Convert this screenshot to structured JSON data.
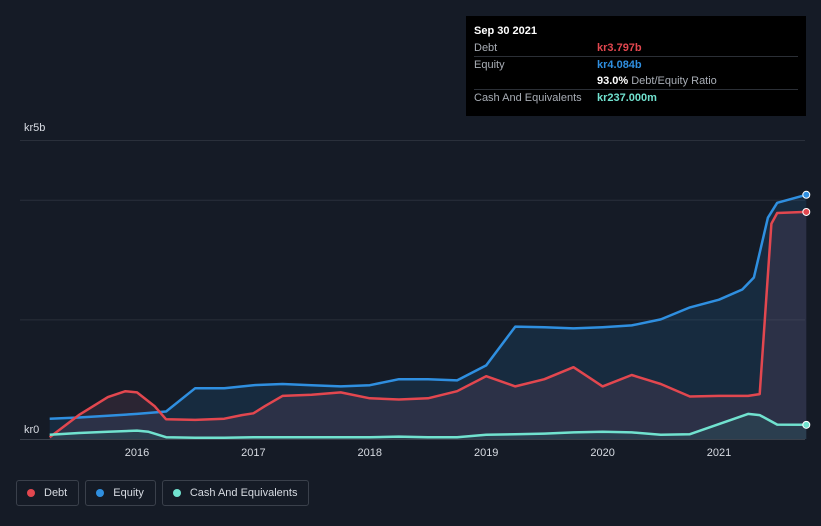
{
  "tooltip": {
    "date": "Sep 30 2021",
    "rows": [
      {
        "label": "Debt",
        "value": "kr3.797b",
        "color": "#e2474f"
      },
      {
        "label": "Equity",
        "value": "kr4.084b",
        "color": "#2f8fe0"
      },
      {
        "label": "",
        "value": "93.0%",
        "sub": "Debt/Equity Ratio",
        "color": "#ffffff"
      },
      {
        "label": "Cash And Equivalents",
        "value": "kr237.000m",
        "color": "#71e2cf"
      }
    ]
  },
  "legend": [
    {
      "label": "Debt",
      "color": "#e2474f"
    },
    {
      "label": "Equity",
      "color": "#2f8fe0"
    },
    {
      "label": "Cash And Equivalents",
      "color": "#71e2cf"
    }
  ],
  "chart_data": {
    "type": "area",
    "ylabel_top": "kr5b",
    "ylabel_bottom": "kr0",
    "ylim": [
      0,
      5
    ],
    "xlim": [
      2015.25,
      2021.75
    ],
    "x_ticks": [
      "2016",
      "2017",
      "2018",
      "2019",
      "2020",
      "2021"
    ],
    "grid": true,
    "legend_position": "bottom-left",
    "series": [
      {
        "name": "Debt",
        "color": "#e2474f",
        "x": [
          2015.25,
          2015.5,
          2015.75,
          2015.9,
          2016.0,
          2016.15,
          2016.25,
          2016.5,
          2016.75,
          2016.9,
          2017.0,
          2017.1,
          2017.25,
          2017.5,
          2017.75,
          2018.0,
          2018.25,
          2018.5,
          2018.75,
          2019.0,
          2019.25,
          2019.5,
          2019.75,
          2020.0,
          2020.25,
          2020.5,
          2020.75,
          2021.0,
          2021.25,
          2021.35,
          2021.45,
          2021.5,
          2021.75
        ],
        "y": [
          0.03,
          0.4,
          0.7,
          0.8,
          0.78,
          0.55,
          0.33,
          0.32,
          0.34,
          0.4,
          0.43,
          0.55,
          0.72,
          0.74,
          0.78,
          0.68,
          0.66,
          0.68,
          0.8,
          1.05,
          0.88,
          1.0,
          1.2,
          0.88,
          1.07,
          0.92,
          0.71,
          0.72,
          0.72,
          0.75,
          3.6,
          3.78,
          3.797
        ]
      },
      {
        "name": "Equity",
        "color": "#2f8fe0",
        "x": [
          2015.25,
          2015.5,
          2015.75,
          2016.0,
          2016.25,
          2016.5,
          2016.75,
          2017.0,
          2017.25,
          2017.5,
          2017.75,
          2018.0,
          2018.25,
          2018.5,
          2018.75,
          2019.0,
          2019.25,
          2019.5,
          2019.75,
          2020.0,
          2020.25,
          2020.5,
          2020.75,
          2021.0,
          2021.2,
          2021.3,
          2021.42,
          2021.5,
          2021.75
        ],
        "y": [
          0.34,
          0.36,
          0.39,
          0.42,
          0.46,
          0.85,
          0.85,
          0.9,
          0.92,
          0.9,
          0.88,
          0.9,
          1.0,
          1.0,
          0.98,
          1.23,
          1.88,
          1.87,
          1.85,
          1.87,
          1.9,
          2.0,
          2.2,
          2.33,
          2.5,
          2.7,
          3.7,
          3.95,
          4.084
        ]
      },
      {
        "name": "Cash And Equivalents",
        "color": "#71e2cf",
        "x": [
          2015.25,
          2015.5,
          2015.75,
          2016.0,
          2016.1,
          2016.25,
          2016.5,
          2016.75,
          2017.0,
          2017.25,
          2017.5,
          2017.75,
          2018.0,
          2018.25,
          2018.5,
          2018.75,
          2019.0,
          2019.25,
          2019.5,
          2019.75,
          2020.0,
          2020.25,
          2020.5,
          2020.75,
          2021.0,
          2021.25,
          2021.35,
          2021.5,
          2021.75
        ],
        "y": [
          0.07,
          0.1,
          0.12,
          0.14,
          0.12,
          0.03,
          0.02,
          0.02,
          0.03,
          0.03,
          0.03,
          0.03,
          0.03,
          0.04,
          0.03,
          0.03,
          0.07,
          0.08,
          0.09,
          0.11,
          0.12,
          0.11,
          0.07,
          0.08,
          0.25,
          0.42,
          0.4,
          0.24,
          0.237
        ]
      }
    ]
  }
}
